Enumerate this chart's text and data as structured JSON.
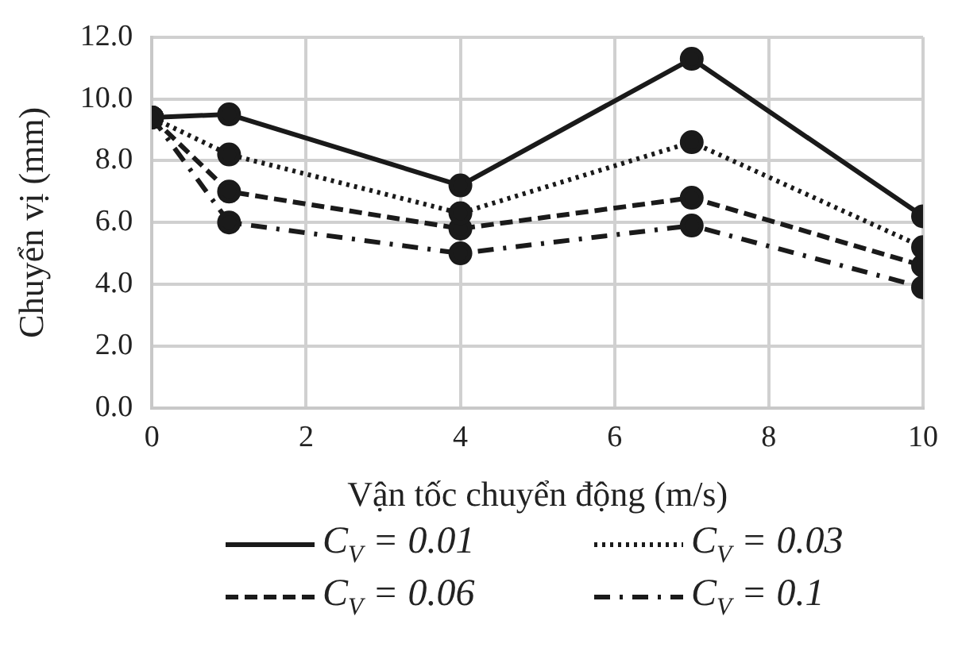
{
  "chart_data": {
    "type": "line",
    "xlabel": "Vận tốc chuyển động (m/s)",
    "ylabel": "Chuyển vị (mm)",
    "x": [
      0,
      1,
      4,
      7,
      10
    ],
    "series": [
      {
        "name": "C$_{V}$ = 0.01",
        "color": "#1a1a1a",
        "line_style": "solid",
        "values": [
          9.4,
          9.5,
          7.2,
          11.3,
          6.2
        ]
      },
      {
        "name": "C$_{V}$ = 0.03",
        "color": "#1a1a1a",
        "line_style": "dotted",
        "values": [
          9.4,
          8.2,
          6.3,
          8.6,
          5.2
        ]
      },
      {
        "name": "C$_{V}$ = 0.06",
        "color": "#1a1a1a",
        "line_style": "dashed",
        "values": [
          9.4,
          7.0,
          5.8,
          6.8,
          4.6
        ]
      },
      {
        "name": "C$_{V}$ = 0.1",
        "color": "#1a1a1a",
        "line_style": "dashdot",
        "values": [
          9.4,
          6.0,
          5.0,
          5.9,
          3.9
        ]
      }
    ],
    "xlim": [
      0,
      10
    ],
    "xticks": [
      0,
      2,
      4,
      6,
      8,
      10
    ],
    "ylim": [
      0,
      12
    ],
    "yticks": [
      {
        "value": 0,
        "label": "0.0"
      },
      {
        "value": 2,
        "label": "2.0"
      },
      {
        "value": 4,
        "label": "4.0"
      },
      {
        "value": 6,
        "label": "6.0"
      },
      {
        "value": 8,
        "label": "8.0"
      },
      {
        "value": 10,
        "label": "10.0"
      },
      {
        "value": 12,
        "label": "12.0"
      }
    ],
    "grid": true,
    "marker": "circle",
    "legend": "bottom"
  }
}
